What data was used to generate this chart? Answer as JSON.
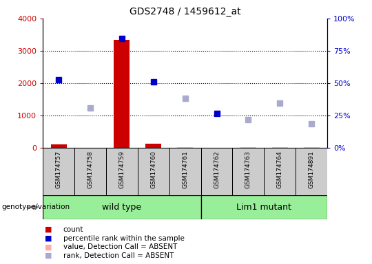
{
  "title": "GDS2748 / 1459612_at",
  "samples": [
    "GSM174757",
    "GSM174758",
    "GSM174759",
    "GSM174760",
    "GSM174761",
    "GSM174762",
    "GSM174763",
    "GSM174764",
    "GSM174891"
  ],
  "count_values": [
    115,
    0,
    3345,
    135,
    0,
    10,
    0,
    0,
    0
  ],
  "count_absent_values": [
    0,
    0,
    0,
    0,
    30,
    10,
    30,
    20,
    20
  ],
  "percentile_values": [
    2100,
    0,
    3380,
    2050,
    0,
    1055,
    0,
    0,
    0
  ],
  "rank_absent_values": [
    0,
    1225,
    0,
    0,
    1535,
    0,
    875,
    1390,
    740
  ],
  "wt_count": 5,
  "lm_count": 4,
  "group_label": "genotype/variation",
  "group_wt_label": "wild type",
  "group_lm_label": "Lim1 mutant",
  "group_color": "#99EE99",
  "ylim_left": [
    0,
    4000
  ],
  "ylim_right": [
    0,
    100
  ],
  "yticks_left": [
    0,
    1000,
    2000,
    3000,
    4000
  ],
  "yticks_right": [
    0,
    25,
    50,
    75,
    100
  ],
  "ytick_labels_left": [
    "0",
    "1000",
    "2000",
    "3000",
    "4000"
  ],
  "ytick_labels_right": [
    "0",
    "25",
    "50",
    "75",
    "100"
  ],
  "left_axis_color": "#cc0000",
  "right_axis_color": "#0000cc",
  "bar_color": "#cc0000",
  "bar_absent_color": "#ffaaaa",
  "dot_color": "#0000cc",
  "dot_absent_color": "#aaaacc",
  "sample_box_color": "#cccccc",
  "legend_items": [
    {
      "label": "count",
      "color": "#cc0000"
    },
    {
      "label": "percentile rank within the sample",
      "color": "#0000cc"
    },
    {
      "label": "value, Detection Call = ABSENT",
      "color": "#ffaaaa"
    },
    {
      "label": "rank, Detection Call = ABSENT",
      "color": "#aaaacc"
    }
  ]
}
